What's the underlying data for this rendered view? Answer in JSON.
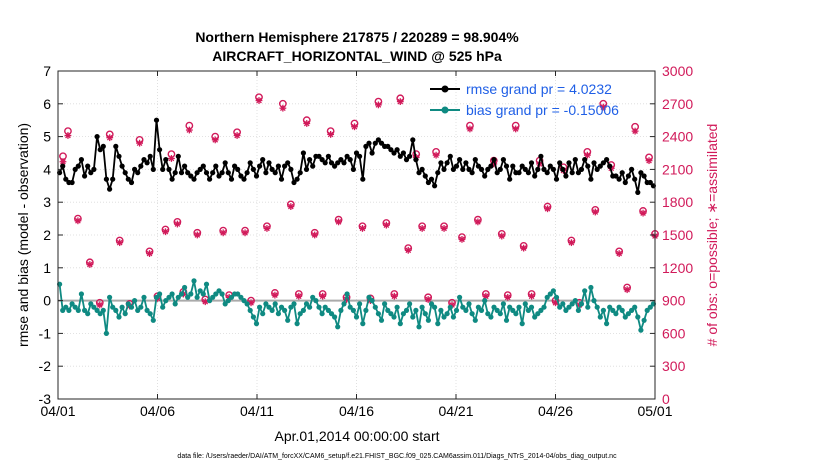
{
  "chart_data": {
    "type": "line",
    "title_line1": "Northern Hemisphere 217875 / 220289 = 98.904%",
    "title_line2": "AIRCRAFT_HORIZONTAL_WIND @ 525 hPa",
    "xlabel": "Apr.01,2014 00:00:00 start",
    "ylabel_left": "rmse and bias (model - observation)",
    "ylabel_right": "# of obs: o=possible; ∗=assimilated",
    "footnote": "data file: /Users/raeder/DAI/ATM_forcXX/CAM6_setup/f.e21.FHIST_BGC.f09_025.CAM6assim.011/Diags_NTrS_2014-04/obs_diag_output.nc",
    "x_range": [
      0,
      30
    ],
    "x_ticks": [
      0,
      5,
      10,
      15,
      20,
      25,
      30
    ],
    "x_tick_labels": [
      "04/01",
      "04/06",
      "04/11",
      "04/16",
      "04/21",
      "04/26",
      "05/01"
    ],
    "ylim_left": [
      -3,
      7
    ],
    "y_ticks_left": [
      -3,
      -2,
      -1,
      0,
      1,
      2,
      3,
      4,
      5,
      6,
      7
    ],
    "y_tick_labels_left": [
      "-3",
      "-2",
      "-1",
      "0",
      "1",
      "2",
      "3",
      "4",
      "5",
      "6",
      "7"
    ],
    "ylim_right": [
      0,
      3000
    ],
    "y_ticks_right": [
      0,
      300,
      600,
      900,
      1200,
      1500,
      1800,
      2100,
      2400,
      2700,
      3000
    ],
    "y_tick_labels_right": [
      "0",
      "300",
      "600",
      "900",
      "1200",
      "1500",
      "1800",
      "2100",
      "2400",
      "2700",
      "3000"
    ],
    "grid": true,
    "legend_position": "top-right",
    "colors": {
      "rmse": "#000000",
      "bias": "#0f8a82",
      "obs": "#d11a5a",
      "zero_line": "#aaaaaa",
      "legend_text": "#1f5fe6"
    },
    "series": [
      {
        "name": "rmse grand pr = 4.0232",
        "key": "rmse",
        "values": [
          3.9,
          4.1,
          3.7,
          3.6,
          3.6,
          4.0,
          4.1,
          4.3,
          3.8,
          4.1,
          3.9,
          4.0,
          5.0,
          4.6,
          4.7,
          3.7,
          3.4,
          3.7,
          4.7,
          4.4,
          4.1,
          3.9,
          3.7,
          3.6,
          4.0,
          3.9,
          4.1,
          4.3,
          4.2,
          4.4,
          4.0,
          5.5,
          4.6,
          4.0,
          4.3,
          4.0,
          3.7,
          3.9,
          4.4,
          3.9,
          4.1,
          3.9,
          3.8,
          3.7,
          3.9,
          4.0,
          4.1,
          3.9,
          3.7,
          3.9,
          4.1,
          3.8,
          3.9,
          4.2,
          3.9,
          3.7,
          4.1,
          4.0,
          3.8,
          3.7,
          3.9,
          4.2,
          4.0,
          3.8,
          4.1,
          4.3,
          3.9,
          4.2,
          4.0,
          3.9,
          4.1,
          3.7,
          4.1,
          4.2,
          4.0,
          3.6,
          3.7,
          3.9,
          4.5,
          4.0,
          4.3,
          4.1,
          4.4,
          4.4,
          4.3,
          4.2,
          4.4,
          4.2,
          4.1,
          4.2,
          4.3,
          4.2,
          4.4,
          4.3,
          4.0,
          4.5,
          4.4,
          3.7,
          4.7,
          4.8,
          4.5,
          4.8,
          4.9,
          4.8,
          4.7,
          4.7,
          4.6,
          4.5,
          4.6,
          4.4,
          4.5,
          4.3,
          4.4,
          4.9,
          4.3,
          3.9,
          4.0,
          3.8,
          3.6,
          3.7,
          3.5,
          3.9,
          4.2,
          4.0,
          4.2,
          4.4,
          4.0,
          4.1,
          4.3,
          4.0,
          4.2,
          4.0,
          3.9,
          4.3,
          4.1,
          4.0,
          3.8,
          4.0,
          4.1,
          4.3,
          3.9,
          4.0,
          4.3,
          4.1,
          3.7,
          4.1,
          3.9,
          3.9,
          4.1,
          4.0,
          3.9,
          4.2,
          3.8,
          4.0,
          4.4,
          4.0,
          3.9,
          4.1,
          4.0,
          3.7,
          4.2,
          4.0,
          3.8,
          4.2,
          3.9,
          4.3,
          3.9,
          4.0,
          4.3,
          4.1,
          3.7,
          4.2,
          4.0,
          4.1,
          4.2,
          4.3,
          4.1,
          3.8,
          3.8,
          3.7,
          3.9,
          3.6,
          3.8,
          4.0,
          3.7,
          3.3,
          3.9,
          3.8,
          3.6,
          3.6,
          3.5
        ]
      },
      {
        "name": "bias grand pr = -0.15006",
        "key": "bias",
        "values": [
          0.5,
          -0.3,
          -0.2,
          -0.3,
          -0.1,
          -0.2,
          -0.3,
          0.2,
          -0.3,
          -0.4,
          -0.1,
          -0.2,
          -0.3,
          -0.4,
          -0.3,
          -1.0,
          0.1,
          -0.2,
          -0.3,
          -0.5,
          -0.2,
          -0.4,
          -0.1,
          -0.2,
          0.0,
          -0.3,
          -0.2,
          0.1,
          -0.3,
          -0.4,
          -0.6,
          0.1,
          0.2,
          -0.2,
          0.0,
          0.1,
          0.2,
          -0.1,
          0.1,
          0.2,
          0.4,
          0.1,
          0.2,
          0.6,
          0.1,
          0.3,
          0.2,
          0.5,
          0.0,
          0.1,
          0.2,
          0.3,
          0.2,
          -0.1,
          0.0,
          0.1,
          0.2,
          0.2,
          0.1,
          0.0,
          -0.1,
          -0.3,
          -0.5,
          -0.7,
          -0.2,
          -0.4,
          -0.1,
          -0.2,
          -0.3,
          -0.1,
          -0.4,
          -0.2,
          -0.3,
          -0.6,
          -0.2,
          -0.1,
          -0.7,
          -0.4,
          -0.3,
          -0.1,
          -0.2,
          0.1,
          0.0,
          -0.2,
          -0.4,
          -0.2,
          -0.3,
          -0.4,
          -0.5,
          -0.8,
          -0.3,
          -0.1,
          0.2,
          -0.2,
          -0.3,
          -0.5,
          -0.1,
          -0.7,
          -0.3,
          0.1,
          0.0,
          -0.2,
          -0.4,
          -0.6,
          -0.1,
          -0.3,
          -0.4,
          -0.5,
          -0.2,
          -0.7,
          -0.4,
          -0.3,
          -0.1,
          -0.5,
          -0.3,
          -0.8,
          -0.2,
          -0.4,
          -0.6,
          -0.1,
          -0.2,
          -0.7,
          -0.3,
          -0.5,
          -0.4,
          -0.2,
          -0.5,
          -0.3,
          0.1,
          -0.2,
          -0.3,
          -0.1,
          -0.4,
          -0.6,
          -0.2,
          -0.3,
          0.0,
          -0.4,
          -0.5,
          -0.2,
          -0.3,
          -0.4,
          -0.1,
          -0.6,
          -0.2,
          -0.3,
          -0.4,
          -0.2,
          -0.7,
          -0.1,
          -0.3,
          -0.2,
          -0.5,
          -0.4,
          -0.3,
          -0.2,
          0.1,
          0.2,
          0.3,
          0.1,
          -0.2,
          -0.1,
          -0.3,
          -0.2,
          -0.1,
          0.0,
          -0.3,
          -0.1,
          0.3,
          -0.2,
          0.4,
          0.0,
          -0.2,
          -0.5,
          -0.3,
          -0.7,
          -0.2,
          -0.3,
          -0.4,
          -0.2,
          -0.3,
          -0.5,
          -0.4,
          -0.3,
          -0.2,
          -0.5,
          -0.9,
          -0.6,
          -0.3,
          -0.2,
          -0.1
        ]
      },
      {
        "name": "obs possible",
        "key": "obs_possible",
        "marker": "o",
        "points": [
          [
            0.25,
            2220
          ],
          [
            0.5,
            2450
          ],
          [
            1.0,
            1650
          ],
          [
            1.6,
            1250
          ],
          [
            2.1,
            880
          ],
          [
            2.6,
            2420
          ],
          [
            3.1,
            1450
          ],
          [
            3.6,
            870
          ],
          [
            4.1,
            2370
          ],
          [
            4.6,
            1350
          ],
          [
            5.0,
            940
          ],
          [
            5.4,
            1550
          ],
          [
            5.7,
            2240
          ],
          [
            6.0,
            1620
          ],
          [
            6.3,
            980
          ],
          [
            6.6,
            2500
          ],
          [
            7.0,
            1520
          ],
          [
            7.4,
            910
          ],
          [
            7.9,
            2400
          ],
          [
            8.3,
            1540
          ],
          [
            8.6,
            950
          ],
          [
            9.0,
            2440
          ],
          [
            9.4,
            1540
          ],
          [
            9.7,
            900
          ],
          [
            10.1,
            2760
          ],
          [
            10.5,
            1580
          ],
          [
            10.9,
            970
          ],
          [
            11.3,
            2700
          ],
          [
            11.7,
            1780
          ],
          [
            12.1,
            960
          ],
          [
            12.5,
            2550
          ],
          [
            12.9,
            1520
          ],
          [
            13.3,
            960
          ],
          [
            13.7,
            2450
          ],
          [
            14.1,
            1640
          ],
          [
            14.5,
            930
          ],
          [
            14.9,
            2520
          ],
          [
            15.3,
            1580
          ],
          [
            15.7,
            920
          ],
          [
            16.1,
            2720
          ],
          [
            16.5,
            1610
          ],
          [
            16.9,
            960
          ],
          [
            17.2,
            2750
          ],
          [
            17.6,
            1380
          ],
          [
            18.0,
            2240
          ],
          [
            18.3,
            1580
          ],
          [
            18.6,
            930
          ],
          [
            19.0,
            2260
          ],
          [
            19.4,
            1580
          ],
          [
            19.8,
            880
          ],
          [
            20.3,
            1480
          ],
          [
            20.7,
            2500
          ],
          [
            21.1,
            1640
          ],
          [
            21.5,
            960
          ],
          [
            21.9,
            2180
          ],
          [
            22.3,
            1510
          ],
          [
            22.6,
            950
          ],
          [
            23.0,
            2500
          ],
          [
            23.4,
            1400
          ],
          [
            23.8,
            960
          ],
          [
            24.2,
            2180
          ],
          [
            24.6,
            1760
          ],
          [
            25.0,
            900
          ],
          [
            25.4,
            2120
          ],
          [
            25.8,
            1450
          ],
          [
            26.2,
            880
          ],
          [
            26.6,
            2260
          ],
          [
            27.0,
            1730
          ],
          [
            27.4,
            2700
          ],
          [
            27.8,
            2140
          ],
          [
            28.2,
            1350
          ],
          [
            28.6,
            1020
          ],
          [
            29.0,
            2490
          ],
          [
            29.4,
            1720
          ],
          [
            29.7,
            2210
          ],
          [
            30.0,
            1510
          ]
        ]
      },
      {
        "name": "obs assimilated",
        "key": "obs_assimilated",
        "marker": "*",
        "points": [
          [
            0.25,
            2170
          ],
          [
            0.5,
            2410
          ],
          [
            1.0,
            1630
          ],
          [
            1.6,
            1230
          ],
          [
            2.1,
            860
          ],
          [
            2.6,
            2390
          ],
          [
            3.1,
            1430
          ],
          [
            3.6,
            850
          ],
          [
            4.1,
            2340
          ],
          [
            4.6,
            1330
          ],
          [
            5.0,
            920
          ],
          [
            5.4,
            1530
          ],
          [
            5.7,
            2200
          ],
          [
            6.0,
            1600
          ],
          [
            6.3,
            960
          ],
          [
            6.6,
            2460
          ],
          [
            7.0,
            1500
          ],
          [
            7.4,
            890
          ],
          [
            7.9,
            2370
          ],
          [
            8.3,
            1520
          ],
          [
            8.6,
            930
          ],
          [
            9.0,
            2410
          ],
          [
            9.4,
            1520
          ],
          [
            9.7,
            880
          ],
          [
            10.1,
            2730
          ],
          [
            10.5,
            1560
          ],
          [
            10.9,
            950
          ],
          [
            11.3,
            2660
          ],
          [
            11.7,
            1760
          ],
          [
            12.1,
            940
          ],
          [
            12.5,
            2520
          ],
          [
            12.9,
            1500
          ],
          [
            13.3,
            940
          ],
          [
            13.7,
            2420
          ],
          [
            14.1,
            1620
          ],
          [
            14.5,
            910
          ],
          [
            14.9,
            2490
          ],
          [
            15.3,
            1560
          ],
          [
            15.7,
            900
          ],
          [
            16.1,
            2690
          ],
          [
            16.5,
            1590
          ],
          [
            16.9,
            940
          ],
          [
            17.2,
            2720
          ],
          [
            17.6,
            1360
          ],
          [
            18.0,
            2210
          ],
          [
            18.3,
            1560
          ],
          [
            18.6,
            910
          ],
          [
            19.0,
            2230
          ],
          [
            19.4,
            1560
          ],
          [
            19.8,
            860
          ],
          [
            20.3,
            1460
          ],
          [
            20.7,
            2470
          ],
          [
            21.1,
            1620
          ],
          [
            21.5,
            940
          ],
          [
            21.9,
            2150
          ],
          [
            22.3,
            1490
          ],
          [
            22.6,
            930
          ],
          [
            23.0,
            2470
          ],
          [
            23.4,
            1380
          ],
          [
            23.8,
            940
          ],
          [
            24.2,
            2150
          ],
          [
            24.6,
            1740
          ],
          [
            25.0,
            880
          ],
          [
            25.4,
            2090
          ],
          [
            25.8,
            1430
          ],
          [
            26.2,
            860
          ],
          [
            26.6,
            2230
          ],
          [
            27.0,
            1710
          ],
          [
            27.4,
            2670
          ],
          [
            27.8,
            2110
          ],
          [
            28.2,
            1330
          ],
          [
            28.6,
            1000
          ],
          [
            29.0,
            2450
          ],
          [
            29.4,
            1700
          ],
          [
            29.7,
            2180
          ],
          [
            30.0,
            1490
          ]
        ]
      }
    ]
  }
}
